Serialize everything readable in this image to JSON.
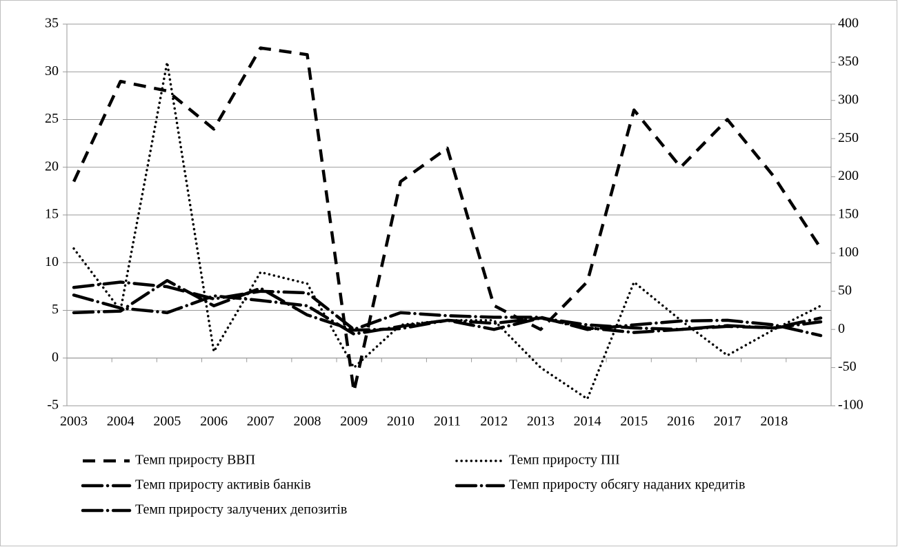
{
  "chart_data": {
    "type": "line",
    "categories": [
      "2003",
      "2004",
      "2005",
      "2006",
      "2007",
      "2008",
      "2009",
      "2010",
      "2011",
      "2012",
      "2013",
      "2014",
      "2015",
      "2016",
      "2017",
      "2018",
      null
    ],
    "series": [
      {
        "name": "Темп приросту ВВП",
        "color": "#000000",
        "style": "dashed",
        "values": [
          18.5,
          29,
          28,
          24,
          32.5,
          31.8,
          -3.5,
          18.5,
          22,
          5.5,
          3,
          8,
          26,
          20,
          25,
          19,
          11.5
        ]
      },
      {
        "name": "Темп приросту ПІІ",
        "color": "#000000",
        "style": "dotted",
        "axis": "y2",
        "values": [
          106,
          25,
          350,
          -29,
          75,
          60,
          -50,
          6,
          12,
          12,
          -50,
          -91,
          62,
          12,
          -34,
          0,
          31
        ]
      },
      {
        "name": "Темп приросту активів банків",
        "color": "#000000",
        "style": "dashdot",
        "axis": "y2",
        "values": [
          55,
          62,
          56,
          40,
          50,
          48,
          0,
          22,
          18,
          16,
          16,
          0,
          6,
          11,
          12,
          6,
          -8
        ]
      },
      {
        "name": "Темп приросту обсягу наданих кредитів",
        "color": "#000000",
        "style": "dashdot",
        "axis": "y2",
        "values": [
          45,
          28,
          22,
          44,
          38,
          31,
          -6,
          4,
          12,
          0,
          15,
          2,
          -4,
          0,
          5,
          2,
          15
        ]
      },
      {
        "name": "Темп приросту залучених депозитів",
        "color": "#000000",
        "style": "dashdot",
        "axis": "y2",
        "values": [
          22,
          24,
          64,
          31,
          54,
          19,
          -1,
          1,
          12,
          8,
          15,
          6,
          2,
          0,
          4,
          2,
          10
        ]
      }
    ],
    "ylim": [
      -5,
      35
    ],
    "yticks": [
      -5,
      0,
      5,
      10,
      15,
      20,
      25,
      30,
      35
    ],
    "y2lim": [
      -100,
      400
    ],
    "y2ticks": [
      -100,
      -50,
      0,
      50,
      100,
      150,
      200,
      250,
      300,
      350,
      400
    ],
    "grid": true
  }
}
